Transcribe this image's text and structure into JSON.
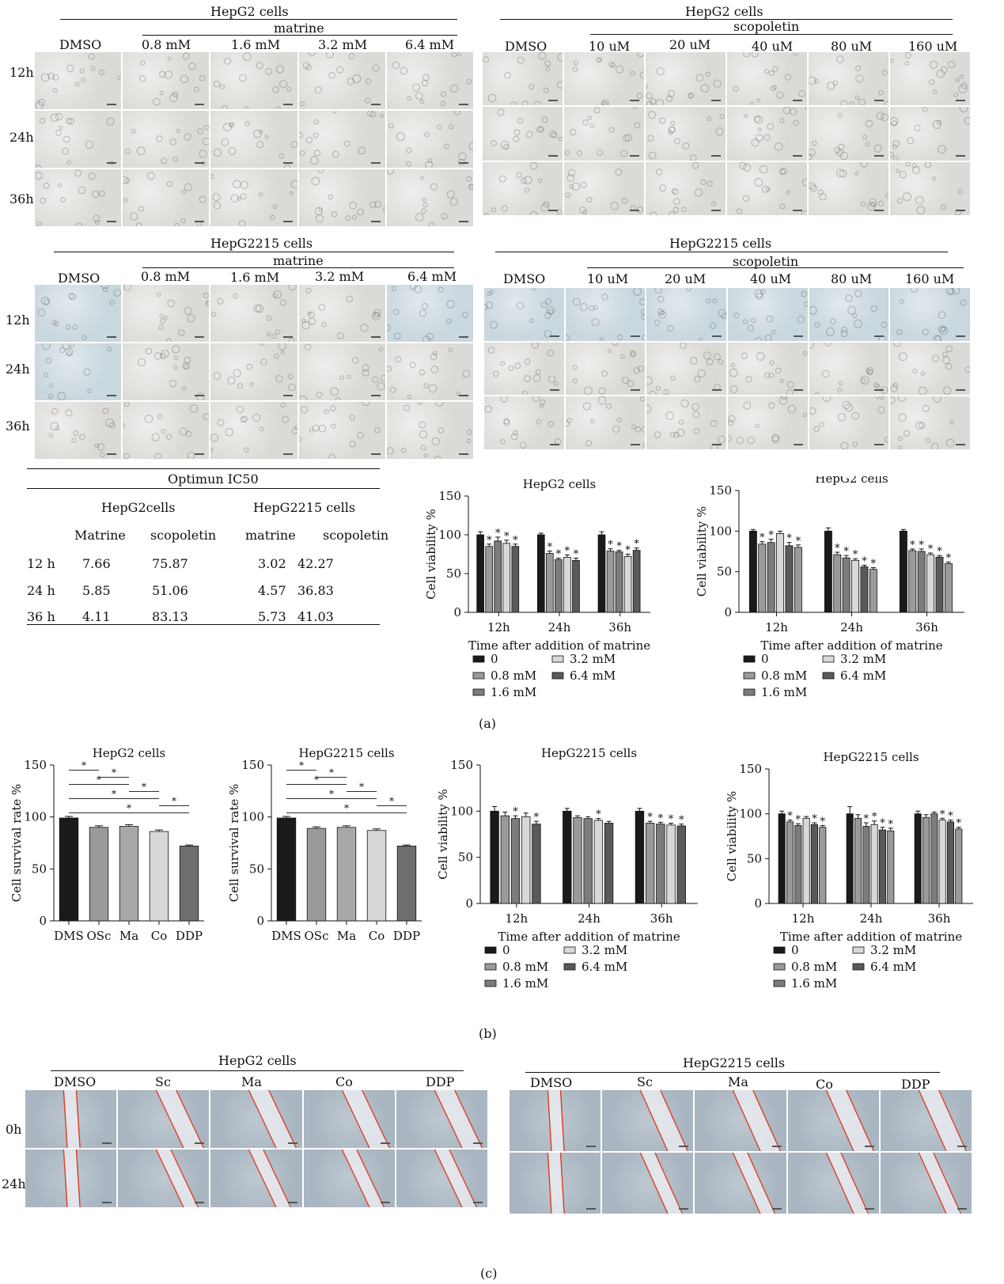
{
  "panel_a": {
    "label": "(a)",
    "hepg2_matrine": {
      "title": "HepG2 cells",
      "drug": "matrine",
      "columns": [
        "DMSO",
        "0.8 mM",
        "1.6 mM",
        "3.2 mM",
        "6.4 mM"
      ],
      "rows": [
        "12h",
        "24h",
        "36h"
      ]
    },
    "hepg2_scopoletin": {
      "title": "HepG2 cells",
      "drug": "scopoletin",
      "columns": [
        "DMSO",
        "10 uM",
        "20 uM",
        "40 uM",
        "80 uM",
        "160 uM"
      ]
    },
    "hepg2215_matrine": {
      "title": "HepG2215 cells",
      "drug": "matrine",
      "columns": [
        "DMSO",
        "0.8 mM",
        "1.6 mM",
        "3.2 mM",
        "6.4 mM"
      ],
      "rows": [
        "12h",
        "24h",
        "36h"
      ]
    },
    "hepg2215_scopoletin": {
      "title": "HepG2215 cells",
      "drug": "scopoletin",
      "columns": [
        "DMSO",
        "10 uM",
        "20 uM",
        "40 uM",
        "80 uM",
        "160 uM"
      ]
    },
    "ic50_table": {
      "title": "Optimun IC50",
      "groups": [
        "HepG2cells",
        "HepG2215 cells"
      ],
      "headers": [
        "Matrine",
        "scopoletin",
        "matrine",
        "scopoletin"
      ],
      "rows": [
        {
          "time": "12 h",
          "v": [
            "7.66",
            "75.87",
            "3.02",
            "42.27"
          ]
        },
        {
          "time": "24 h",
          "v": [
            "5.85",
            "51.06",
            "4.57",
            "36.83"
          ]
        },
        {
          "time": "36 h",
          "v": [
            "4.11",
            "83.13",
            "5.73",
            "41.03"
          ]
        }
      ]
    }
  },
  "panel_b": {
    "label": "(b)"
  },
  "panel_c": {
    "label": "(c)",
    "hepg2": {
      "title": "HepG2 cells",
      "columns": [
        "DMSO",
        "Sc",
        "Ma",
        "Co",
        "DDP"
      ],
      "rows": [
        "0h",
        "24h"
      ]
    },
    "hepg2215": {
      "title": "HepG2215 cells",
      "columns": [
        "DMSO",
        "Sc",
        "Ma",
        "Co",
        "DDP"
      ]
    }
  },
  "colors": {
    "black": "#1a1a1a",
    "grey1": "#9a9a9a",
    "grey2": "#7c7c7c",
    "light": "#d8d8d8",
    "dark": "#5a5a5a",
    "wound_line": "#e0391e"
  },
  "chart_data": [
    {
      "id": "a1",
      "type": "bar",
      "title": "HepG2 cells",
      "ylabel": "Cell viability %",
      "xlabel": "Time after addition of matrine",
      "ylim": [
        0,
        150
      ],
      "yticks": [
        0,
        50,
        100,
        150
      ],
      "categories": [
        "12h",
        "24h",
        "36h"
      ],
      "series": [
        {
          "name": "0",
          "color": "#1a1a1a",
          "values": [
            100,
            100,
            100
          ],
          "err": [
            4,
            2,
            4
          ]
        },
        {
          "name": "0.8 mM",
          "color": "#9a9a9a",
          "values": [
            85,
            76,
            79
          ],
          "err": [
            3,
            3,
            3
          ]
        },
        {
          "name": "1.6 mM",
          "color": "#7c7c7c",
          "values": [
            92,
            68,
            78
          ],
          "err": [
            5,
            2,
            2
          ]
        },
        {
          "name": "3.2 mM",
          "color": "#d8d8d8",
          "values": [
            89,
            71,
            72
          ],
          "err": [
            4,
            3,
            3
          ]
        },
        {
          "name": "6.4 mM",
          "color": "#5a5a5a",
          "values": [
            85,
            67,
            80
          ],
          "err": [
            3,
            3,
            3
          ]
        }
      ],
      "star": [
        [
          false,
          true,
          true,
          true,
          true
        ],
        [
          false,
          true,
          true,
          true,
          true
        ],
        [
          false,
          true,
          true,
          true,
          true
        ]
      ],
      "legend": [
        "0",
        "3.2 mM",
        "0.8 mM",
        "6.4 mM",
        "1.6 mM"
      ]
    },
    {
      "id": "a2",
      "type": "bar",
      "title": "HepG2 cells",
      "ylabel": "Cell viability %",
      "xlabel": "Time after addition of matrine",
      "ylim": [
        0,
        150
      ],
      "yticks": [
        0,
        50,
        100,
        150
      ],
      "categories": [
        "12h",
        "24h",
        "36h"
      ],
      "series": [
        {
          "name": "0",
          "color": "#1a1a1a",
          "values": [
            100,
            100,
            100
          ],
          "err": [
            2,
            4,
            2
          ]
        },
        {
          "name": "0.8 mM",
          "color": "#9a9a9a",
          "values": [
            84,
            71,
            76
          ],
          "err": [
            3,
            3,
            2
          ]
        },
        {
          "name": "1.6 mM",
          "color": "#7c7c7c",
          "values": [
            86,
            67,
            75
          ],
          "err": [
            4,
            3,
            3
          ]
        },
        {
          "name": "3.2 mM",
          "color": "#d8d8d8",
          "values": [
            97,
            64,
            71
          ],
          "err": [
            3,
            2,
            2
          ]
        },
        {
          "name": "6.4 mM",
          "color": "#5a5a5a",
          "values": [
            82,
            56,
            68
          ],
          "err": [
            4,
            2,
            2
          ]
        },
        {
          "name": "",
          "color": "#9a9a9a",
          "values": [
            80,
            53,
            60
          ],
          "err": [
            3,
            2,
            2
          ]
        }
      ],
      "star": [
        [
          false,
          true,
          true,
          false,
          true,
          true
        ],
        [
          false,
          true,
          true,
          true,
          true,
          true
        ],
        [
          false,
          true,
          true,
          true,
          true,
          true
        ]
      ],
      "legend": [
        "0",
        "3.2 mM",
        "0.8 mM",
        "6.4 mM",
        "1.6 mM"
      ]
    },
    {
      "id": "b1",
      "type": "bar",
      "title": "HepG2 cells",
      "ylabel": "Cell survival rate %",
      "ylim": [
        0,
        150
      ],
      "yticks": [
        0,
        50,
        100,
        150
      ],
      "categories": [
        "DMS",
        "OSc",
        "Ma",
        "Co",
        "DDP"
      ],
      "series": [
        {
          "name": "",
          "values": [
            99,
            90,
            91,
            86,
            72
          ],
          "err": [
            1.5,
            1.5,
            1.5,
            1.5,
            1.0
          ],
          "colors": [
            "#1a1a1a",
            "#9a9a9a",
            "#a8a8a8",
            "#d8d8d8",
            "#6e6e6e"
          ]
        }
      ],
      "sig": [
        [
          0,
          1
        ],
        [
          1,
          2
        ],
        [
          0,
          2
        ],
        [
          2,
          3
        ],
        [
          0,
          3
        ],
        [
          3,
          4
        ],
        [
          0,
          4
        ]
      ]
    },
    {
      "id": "b2",
      "type": "bar",
      "title": "HepG2215 cells",
      "ylabel": "Cell survival rate %",
      "ylim": [
        0,
        150
      ],
      "yticks": [
        0,
        50,
        100,
        150
      ],
      "categories": [
        "DMS",
        "OSc",
        "Ma",
        "Co",
        "DDP"
      ],
      "series": [
        {
          "name": "",
          "values": [
            99,
            89,
            90,
            87,
            72
          ],
          "err": [
            1.5,
            1.5,
            1.5,
            1.5,
            1.0
          ],
          "colors": [
            "#1a1a1a",
            "#9a9a9a",
            "#a8a8a8",
            "#d8d8d8",
            "#6e6e6e"
          ]
        }
      ],
      "sig": [
        [
          0,
          1
        ],
        [
          1,
          2
        ],
        [
          0,
          2
        ],
        [
          2,
          3
        ],
        [
          0,
          3
        ],
        [
          3,
          4
        ],
        [
          0,
          4
        ]
      ]
    },
    {
      "id": "b3",
      "type": "bar",
      "title": "HepG2215 cells",
      "ylabel": "Cell viability %",
      "xlabel": "Time after addition of matrine",
      "ylim": [
        0,
        150
      ],
      "yticks": [
        0,
        50,
        100,
        150
      ],
      "categories": [
        "12h",
        "24h",
        "36h"
      ],
      "series": [
        {
          "name": "0",
          "color": "#1a1a1a",
          "values": [
            100,
            100,
            100
          ],
          "err": [
            5,
            3,
            3
          ]
        },
        {
          "name": "0.8 mM",
          "color": "#9a9a9a",
          "values": [
            95,
            93,
            87
          ],
          "err": [
            4,
            2,
            2
          ]
        },
        {
          "name": "1.6 mM",
          "color": "#7c7c7c",
          "values": [
            92,
            92,
            86
          ],
          "err": [
            3,
            2,
            2
          ]
        },
        {
          "name": "3.2 mM",
          "color": "#d8d8d8",
          "values": [
            94,
            90,
            85
          ],
          "err": [
            4,
            2,
            2
          ]
        },
        {
          "name": "6.4 mM",
          "color": "#5a5a5a",
          "values": [
            86,
            87,
            84
          ],
          "err": [
            3,
            2,
            2
          ]
        }
      ],
      "star": [
        [
          false,
          false,
          true,
          false,
          true
        ],
        [
          false,
          false,
          false,
          true,
          false
        ],
        [
          false,
          true,
          true,
          true,
          true
        ]
      ],
      "legend": [
        "0",
        "3.2 mM",
        "0.8 mM",
        "6.4 mM",
        "1.6 mM"
      ]
    },
    {
      "id": "b4",
      "type": "bar",
      "title": "HepG2215 cells",
      "ylabel": "Cell viability %",
      "xlabel": "Time after addition of matrine",
      "ylim": [
        0,
        150
      ],
      "yticks": [
        0,
        50,
        100,
        150
      ],
      "categories": [
        "12h",
        "24h",
        "36h"
      ],
      "series": [
        {
          "name": "0",
          "color": "#1a1a1a",
          "values": [
            100,
            100,
            100
          ],
          "err": [
            3,
            8,
            3
          ]
        },
        {
          "name": "0.8 mM",
          "color": "#9a9a9a",
          "values": [
            91,
            95,
            96
          ],
          "err": [
            2,
            4,
            3
          ]
        },
        {
          "name": "1.6 mM",
          "color": "#7c7c7c",
          "values": [
            87,
            86,
            100
          ],
          "err": [
            2,
            4,
            2
          ]
        },
        {
          "name": "3.2 mM",
          "color": "#d8d8d8",
          "values": [
            95,
            88,
            93
          ],
          "err": [
            2,
            4,
            2
          ]
        },
        {
          "name": "6.4 mM",
          "color": "#5a5a5a",
          "values": [
            88,
            82,
            91
          ],
          "err": [
            2,
            3,
            2
          ]
        },
        {
          "name": "",
          "color": "#9a9a9a",
          "values": [
            85,
            81,
            83
          ],
          "err": [
            2,
            3,
            2
          ]
        }
      ],
      "star": [
        [
          false,
          true,
          true,
          false,
          true,
          true
        ],
        [
          false,
          false,
          true,
          true,
          true,
          true
        ],
        [
          false,
          false,
          false,
          true,
          true,
          true
        ]
      ],
      "legend": [
        "0",
        "3.2 mM",
        "0.8 mM",
        "6.4 mM",
        "1.6 mM"
      ]
    }
  ]
}
